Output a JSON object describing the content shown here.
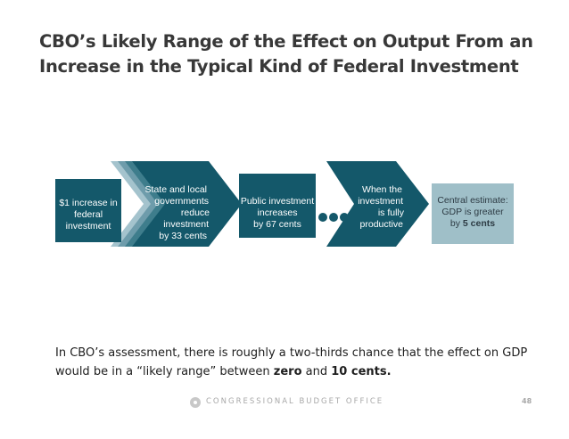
{
  "slide": {
    "title_line1": "CBO’s Likely Range of the Effect on Output From an",
    "title_line2": "Increase in the Typical Kind of Federal Investment"
  },
  "flow": {
    "box1": {
      "line1": "$1 increase in",
      "line2": "federal",
      "line3": "investment"
    },
    "step2": {
      "line1": "State and local",
      "line2": "governments",
      "line3": "reduce",
      "line4": "investment",
      "line5": "by 33 cents"
    },
    "step3": {
      "line1": "Public investment",
      "line2": "increases",
      "line3": "by 67 cents"
    },
    "step4": {
      "line1": "When the",
      "line2": "investment",
      "line3": "is fully",
      "line4": "productive"
    },
    "result": {
      "line1": "Central estimate:",
      "line2": "GDP is greater",
      "line3_prefix": "by",
      "line3_bold": "5 cents"
    }
  },
  "summary": {
    "part1": "In CBO’s assessment, there is roughly a two-thirds chance that the effect on GDP would be in a “likely range” between",
    "zero": "zero",
    "and": "and",
    "ten_cents": "10 cents."
  },
  "footer": {
    "org": "CONGRESSIONAL BUDGET OFFICE",
    "page": "48"
  },
  "colors": {
    "dark_teal": "#14586a",
    "mid_teal": "#3e7d8c",
    "light_teal": "#6e9cab",
    "pale_teal": "#a4c3cd",
    "result_bg": "#9fbfc8",
    "title": "#383838"
  }
}
